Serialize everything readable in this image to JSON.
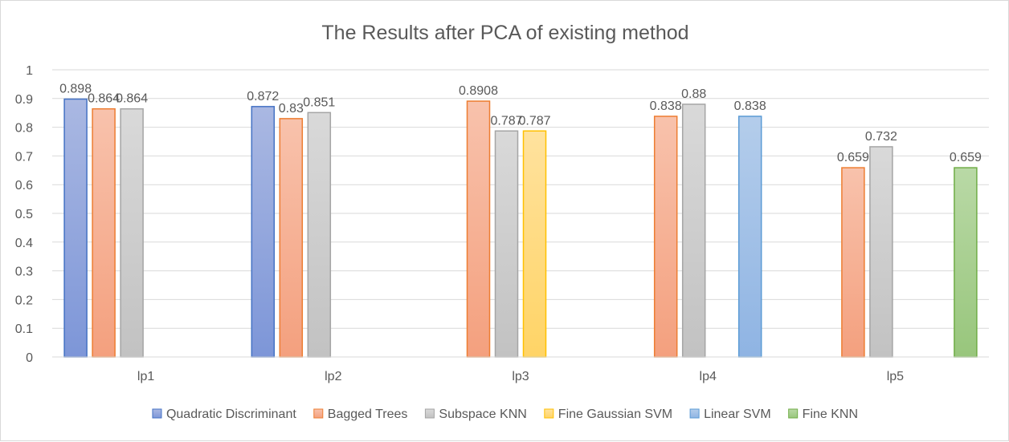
{
  "chart_data": {
    "type": "bar",
    "title": "The Results after PCA of existing method",
    "categories": [
      "lp1",
      "lp2",
      "lp3",
      "lp4",
      "lp5"
    ],
    "ylim": [
      0,
      1
    ],
    "yticks": [
      0,
      0.1,
      0.2,
      0.3,
      0.4,
      0.5,
      0.6,
      0.7,
      0.8,
      0.9,
      1
    ],
    "ytick_labels": [
      "0",
      "0.1",
      "0.2",
      "0.3",
      "0.4",
      "0.5",
      "0.6",
      "0.7",
      "0.8",
      "0.9",
      "1"
    ],
    "grid": true,
    "legend_position": "bottom",
    "series": [
      {
        "name": "Quadratic Discriminant",
        "values": [
          0.898,
          0.872,
          null,
          null,
          null
        ],
        "labels": [
          "0.898",
          "0.872",
          "",
          "",
          ""
        ],
        "fill_top": "#aab8e2",
        "fill_bottom": "#7d96d8",
        "stroke": "#4472c4"
      },
      {
        "name": "Bagged Trees",
        "values": [
          0.864,
          0.83,
          0.8908,
          0.838,
          0.659
        ],
        "labels": [
          "0.864",
          "0.83",
          "0.8908",
          "0.838",
          "0.659"
        ],
        "fill_top": "#f8c2ac",
        "fill_bottom": "#f4a07e",
        "stroke": "#ed7d31"
      },
      {
        "name": "Subspace KNN",
        "values": [
          0.864,
          0.851,
          0.787,
          0.88,
          0.732
        ],
        "labels": [
          "0.864",
          "0.851",
          "0.787",
          "0.88",
          "0.732"
        ],
        "fill_top": "#d9d9d9",
        "fill_bottom": "#c2c2c2",
        "stroke": "#a5a5a5"
      },
      {
        "name": "Fine Gaussian SVM",
        "values": [
          null,
          null,
          0.787,
          null,
          null
        ],
        "labels": [
          "",
          "",
          "0.787",
          "",
          ""
        ],
        "fill_top": "#ffe29e",
        "fill_bottom": "#ffd466",
        "stroke": "#ffc000"
      },
      {
        "name": "Linear SVM",
        "values": [
          null,
          null,
          null,
          0.838,
          null
        ],
        "labels": [
          "",
          "",
          "",
          "0.838",
          ""
        ],
        "fill_top": "#b4cdeb",
        "fill_bottom": "#8fb4e3",
        "stroke": "#5b9bd5"
      },
      {
        "name": "Fine KNN",
        "values": [
          null,
          null,
          null,
          null,
          0.659
        ],
        "labels": [
          "",
          "",
          "",
          "",
          "0.659"
        ],
        "fill_top": "#b9d9a6",
        "fill_bottom": "#98c67c",
        "stroke": "#70ad47"
      }
    ]
  }
}
